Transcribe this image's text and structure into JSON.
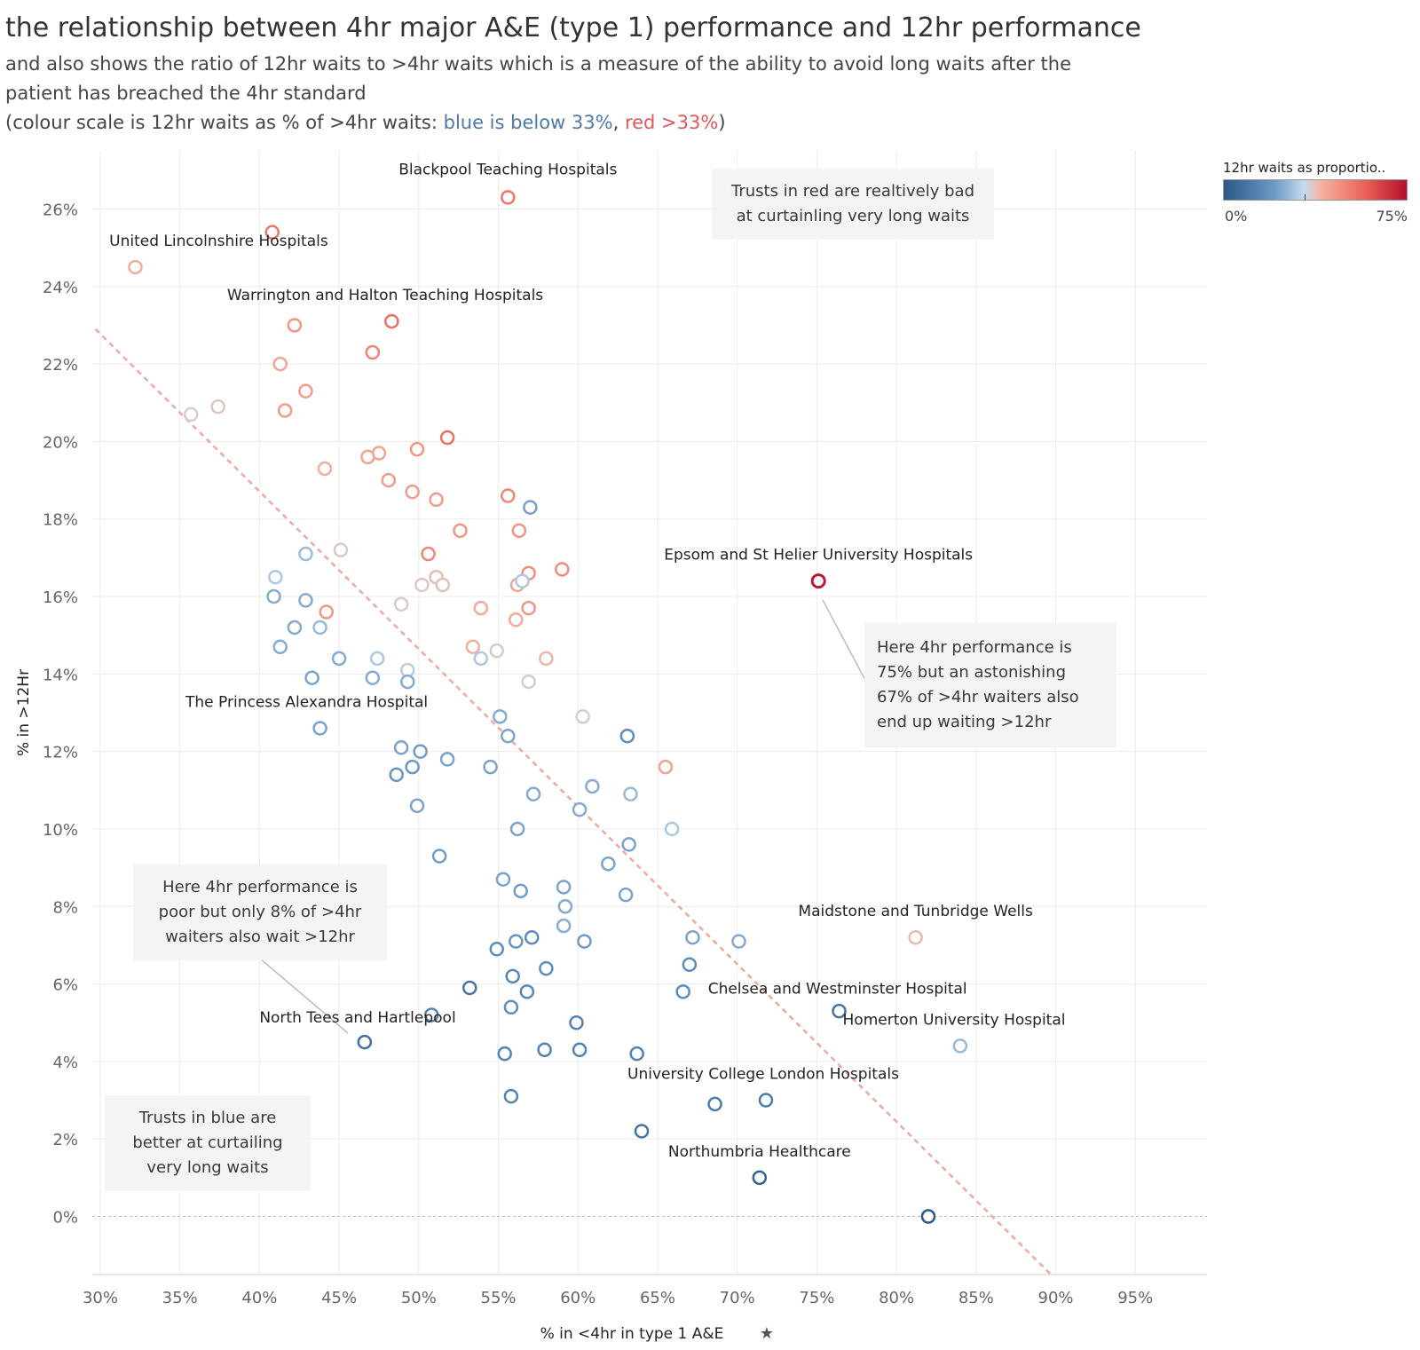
{
  "header": {
    "title": "the relationship between 4hr major A&E (type 1) performance and 12hr performance",
    "subtitle_line1": "and also shows the ratio of 12hr waits to >4hr waits which is a measure of the ability to avoid long waits after the",
    "subtitle_line2": "patient has breached the 4hr standard",
    "subtitle_line3_prefix": "(colour scale is 12hr waits as % of >4hr waits: ",
    "subtitle_blue": "blue is below 33%",
    "subtitle_sep": ", ",
    "subtitle_red": "red >33%",
    "subtitle_suffix": ")"
  },
  "legend": {
    "title": "12hr waits as proportio..",
    "min_label": "0%",
    "max_label": "75%"
  },
  "notes": {
    "red_note": "Trusts in red are realtively bad at curtainling very long waits",
    "epsom_note": "Here 4hr performance is 75% but an astonishing 67% of >4hr waiters also end up waiting >12hr",
    "poor_note": "Here 4hr performance is poor but only 8% of >4hr waiters also wait >12hr",
    "blue_note": "Trusts in blue are better at curtailing very long waits"
  },
  "chart_data": {
    "type": "scatter",
    "xlabel": "% in <4hr in type 1 A&E",
    "ylabel": "% in >12Hr",
    "xlim": [
      29.5,
      99.5
    ],
    "ylim": [
      -1.5,
      27.5
    ],
    "x_ticks": [
      30,
      35,
      40,
      45,
      50,
      55,
      60,
      65,
      70,
      75,
      80,
      85,
      90,
      95
    ],
    "x_tick_labels": [
      "30%",
      "35%",
      "40%",
      "45%",
      "50%",
      "55%",
      "60%",
      "65%",
      "70%",
      "75%",
      "80%",
      "85%",
      "90%",
      "95%"
    ],
    "y_ticks": [
      0,
      2,
      4,
      6,
      8,
      10,
      12,
      14,
      16,
      18,
      20,
      22,
      24,
      26
    ],
    "y_tick_labels": [
      "0%",
      "2%",
      "4%",
      "6%",
      "8%",
      "10%",
      "12%",
      "14%",
      "16%",
      "18%",
      "20%",
      "22%",
      "24%",
      "26%"
    ],
    "grid": true,
    "legend_position": "top-right",
    "trend_line": {
      "x1": 29.7,
      "y1": 22.9,
      "x2": 89.7,
      "y2": -1.5,
      "color": "#f0a9a0"
    },
    "colors": {
      "low": "#2a5783",
      "mid_low": "#6d9ac6",
      "light_blue": "#c6dbef",
      "neutral": "#d8cccc",
      "light_red": "#f6b3a2",
      "red": "#e85f55",
      "high": "#b40f2d"
    },
    "points": [
      {
        "x": 55.6,
        "y": 26.3,
        "c": 0.62,
        "label": "Blackpool Teaching Hospitals"
      },
      {
        "x": 40.8,
        "y": 25.4,
        "c": 0.62
      },
      {
        "x": 32.2,
        "y": 24.5,
        "c": 0.55,
        "label": "United Lincolnshire Hospitals"
      },
      {
        "x": 48.3,
        "y": 23.1,
        "c": 0.63,
        "label": "Warrington and Halton Teaching Hospitals"
      },
      {
        "x": 42.2,
        "y": 23.0,
        "c": 0.58
      },
      {
        "x": 47.1,
        "y": 22.3,
        "c": 0.6
      },
      {
        "x": 41.3,
        "y": 22.0,
        "c": 0.56
      },
      {
        "x": 42.9,
        "y": 21.3,
        "c": 0.57
      },
      {
        "x": 35.7,
        "y": 20.7,
        "c": 0.45
      },
      {
        "x": 37.4,
        "y": 20.9,
        "c": 0.48
      },
      {
        "x": 41.6,
        "y": 20.8,
        "c": 0.57
      },
      {
        "x": 51.8,
        "y": 20.1,
        "c": 0.63
      },
      {
        "x": 49.9,
        "y": 19.8,
        "c": 0.58
      },
      {
        "x": 47.5,
        "y": 19.7,
        "c": 0.56
      },
      {
        "x": 46.8,
        "y": 19.6,
        "c": 0.56
      },
      {
        "x": 44.1,
        "y": 19.3,
        "c": 0.54
      },
      {
        "x": 48.1,
        "y": 19.0,
        "c": 0.57
      },
      {
        "x": 49.6,
        "y": 18.7,
        "c": 0.57
      },
      {
        "x": 55.6,
        "y": 18.6,
        "c": 0.6
      },
      {
        "x": 51.1,
        "y": 18.5,
        "c": 0.57
      },
      {
        "x": 57.0,
        "y": 18.3,
        "c": 0.27
      },
      {
        "x": 52.6,
        "y": 17.7,
        "c": 0.58
      },
      {
        "x": 56.3,
        "y": 17.7,
        "c": 0.58
      },
      {
        "x": 45.1,
        "y": 17.2,
        "c": 0.47
      },
      {
        "x": 42.9,
        "y": 17.1,
        "c": 0.35
      },
      {
        "x": 50.6,
        "y": 17.1,
        "c": 0.6
      },
      {
        "x": 59.0,
        "y": 16.7,
        "c": 0.59
      },
      {
        "x": 56.9,
        "y": 16.6,
        "c": 0.59
      },
      {
        "x": 41.0,
        "y": 16.5,
        "c": 0.38
      },
      {
        "x": 51.1,
        "y": 16.5,
        "c": 0.5
      },
      {
        "x": 50.2,
        "y": 16.3,
        "c": 0.47
      },
      {
        "x": 51.5,
        "y": 16.3,
        "c": 0.49
      },
      {
        "x": 56.2,
        "y": 16.3,
        "c": 0.56
      },
      {
        "x": 56.5,
        "y": 16.4,
        "c": 0.38
      },
      {
        "x": 75.1,
        "y": 16.4,
        "c": 0.95,
        "label": "Epsom and St Helier University Hospitals"
      },
      {
        "x": 40.9,
        "y": 16.0,
        "c": 0.3
      },
      {
        "x": 42.9,
        "y": 15.9,
        "c": 0.3
      },
      {
        "x": 48.9,
        "y": 15.8,
        "c": 0.46
      },
      {
        "x": 53.9,
        "y": 15.7,
        "c": 0.55
      },
      {
        "x": 56.9,
        "y": 15.7,
        "c": 0.58
      },
      {
        "x": 44.2,
        "y": 15.6,
        "c": 0.58
      },
      {
        "x": 56.1,
        "y": 15.4,
        "c": 0.55
      },
      {
        "x": 42.2,
        "y": 15.2,
        "c": 0.3
      },
      {
        "x": 43.8,
        "y": 15.2,
        "c": 0.34
      },
      {
        "x": 41.3,
        "y": 14.7,
        "c": 0.3
      },
      {
        "x": 53.4,
        "y": 14.7,
        "c": 0.54
      },
      {
        "x": 54.9,
        "y": 14.6,
        "c": 0.47
      },
      {
        "x": 45.0,
        "y": 14.4,
        "c": 0.3
      },
      {
        "x": 47.4,
        "y": 14.4,
        "c": 0.38
      },
      {
        "x": 53.9,
        "y": 14.4,
        "c": 0.38
      },
      {
        "x": 58.0,
        "y": 14.4,
        "c": 0.52
      },
      {
        "x": 49.3,
        "y": 14.1,
        "c": 0.41
      },
      {
        "x": 43.3,
        "y": 13.9,
        "c": 0.28
      },
      {
        "x": 47.1,
        "y": 13.9,
        "c": 0.3
      },
      {
        "x": 49.3,
        "y": 13.8,
        "c": 0.3
      },
      {
        "x": 56.9,
        "y": 13.8,
        "c": 0.44
      },
      {
        "x": 55.1,
        "y": 12.9,
        "c": 0.3
      },
      {
        "x": 60.3,
        "y": 12.9,
        "c": 0.45
      },
      {
        "x": 43.8,
        "y": 12.6,
        "c": 0.28,
        "label": "The Princess Alexandra Hospital"
      },
      {
        "x": 55.6,
        "y": 12.4,
        "c": 0.28
      },
      {
        "x": 63.1,
        "y": 12.4,
        "c": 0.22
      },
      {
        "x": 48.9,
        "y": 12.1,
        "c": 0.28
      },
      {
        "x": 50.1,
        "y": 12.0,
        "c": 0.26
      },
      {
        "x": 51.8,
        "y": 11.8,
        "c": 0.28
      },
      {
        "x": 49.6,
        "y": 11.6,
        "c": 0.25
      },
      {
        "x": 54.5,
        "y": 11.6,
        "c": 0.28
      },
      {
        "x": 65.5,
        "y": 11.6,
        "c": 0.56
      },
      {
        "x": 48.6,
        "y": 11.4,
        "c": 0.24
      },
      {
        "x": 60.9,
        "y": 11.1,
        "c": 0.3
      },
      {
        "x": 57.2,
        "y": 10.9,
        "c": 0.3
      },
      {
        "x": 63.3,
        "y": 10.9,
        "c": 0.34
      },
      {
        "x": 49.9,
        "y": 10.6,
        "c": 0.28
      },
      {
        "x": 60.1,
        "y": 10.5,
        "c": 0.3
      },
      {
        "x": 56.2,
        "y": 10.0,
        "c": 0.28
      },
      {
        "x": 65.9,
        "y": 10.0,
        "c": 0.38
      },
      {
        "x": 63.2,
        "y": 9.6,
        "c": 0.28
      },
      {
        "x": 51.3,
        "y": 9.3,
        "c": 0.26
      },
      {
        "x": 61.9,
        "y": 9.1,
        "c": 0.28
      },
      {
        "x": 55.3,
        "y": 8.7,
        "c": 0.28
      },
      {
        "x": 59.1,
        "y": 8.5,
        "c": 0.28
      },
      {
        "x": 56.4,
        "y": 8.4,
        "c": 0.26
      },
      {
        "x": 63.0,
        "y": 8.3,
        "c": 0.28
      },
      {
        "x": 59.2,
        "y": 8.0,
        "c": 0.3
      },
      {
        "x": 59.1,
        "y": 7.5,
        "c": 0.3
      },
      {
        "x": 67.2,
        "y": 7.2,
        "c": 0.28
      },
      {
        "x": 57.1,
        "y": 7.2,
        "c": 0.22
      },
      {
        "x": 81.2,
        "y": 7.2,
        "c": 0.5,
        "label": "Maidstone and Tunbridge Wells"
      },
      {
        "x": 56.1,
        "y": 7.1,
        "c": 0.24
      },
      {
        "x": 60.4,
        "y": 7.1,
        "c": 0.26
      },
      {
        "x": 70.1,
        "y": 7.1,
        "c": 0.3
      },
      {
        "x": 54.9,
        "y": 6.9,
        "c": 0.22
      },
      {
        "x": 67.0,
        "y": 6.5,
        "c": 0.22
      },
      {
        "x": 58.0,
        "y": 6.4,
        "c": 0.22
      },
      {
        "x": 55.9,
        "y": 6.2,
        "c": 0.2
      },
      {
        "x": 53.2,
        "y": 5.9,
        "c": 0.12
      },
      {
        "x": 56.8,
        "y": 5.8,
        "c": 0.2
      },
      {
        "x": 66.6,
        "y": 5.8,
        "c": 0.22,
        "label": "Chelsea and Westminster Hospital"
      },
      {
        "x": 55.8,
        "y": 5.4,
        "c": 0.22
      },
      {
        "x": 76.4,
        "y": 5.3,
        "c": 0.12
      },
      {
        "x": 50.8,
        "y": 5.2,
        "c": 0.18
      },
      {
        "x": 59.9,
        "y": 5.0,
        "c": 0.18
      },
      {
        "x": 84.0,
        "y": 4.4,
        "c": 0.34,
        "label": "Homerton University Hospital"
      },
      {
        "x": 46.6,
        "y": 4.5,
        "c": 0.1,
        "label": "North Tees and Hartlepool"
      },
      {
        "x": 57.9,
        "y": 4.3,
        "c": 0.18
      },
      {
        "x": 60.1,
        "y": 4.3,
        "c": 0.18
      },
      {
        "x": 55.4,
        "y": 4.2,
        "c": 0.18
      },
      {
        "x": 63.7,
        "y": 4.2,
        "c": 0.18
      },
      {
        "x": 71.8,
        "y": 3.0,
        "c": 0.15,
        "label": "University College London Hospitals"
      },
      {
        "x": 68.6,
        "y": 2.9,
        "c": 0.15
      },
      {
        "x": 55.8,
        "y": 3.1,
        "c": 0.18
      },
      {
        "x": 64.0,
        "y": 2.2,
        "c": 0.12
      },
      {
        "x": 71.4,
        "y": 1.0,
        "c": 0.05,
        "label": "Northumbria Healthcare"
      },
      {
        "x": 82.0,
        "y": 0.0,
        "c": 0.0
      }
    ]
  }
}
